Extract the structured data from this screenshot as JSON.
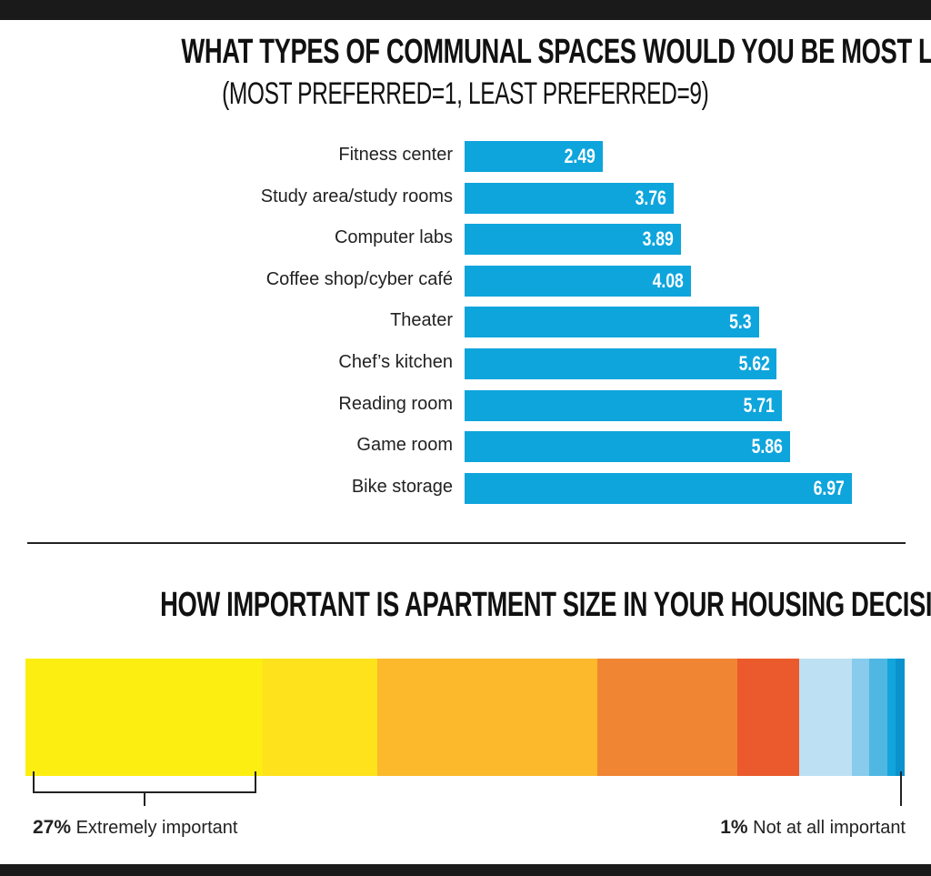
{
  "chart_data": [
    {
      "type": "bar",
      "orientation": "horizontal",
      "title": "WHAT TYPES OF COMMUNAL SPACES WOULD YOU BE MOST LIKELY TO USE?",
      "subtitle": "(MOST PREFERRED=1, LEAST PREFERRED=9)",
      "categories": [
        "Fitness center",
        "Study area/study rooms",
        "Computer labs",
        "Coffee shop/cyber café",
        "Theater",
        "Chef’s kitchen",
        "Reading room",
        "Game room",
        "Bike storage"
      ],
      "values": [
        2.49,
        3.76,
        3.89,
        4.08,
        5.3,
        5.62,
        5.71,
        5.86,
        6.97
      ],
      "value_labels": [
        "2.49",
        "3.76",
        "3.89",
        "4.08",
        "5.3",
        "5.62",
        "5.71",
        "5.86",
        "6.97"
      ],
      "xlim": [
        0,
        7
      ],
      "color": "#0ea5dc"
    },
    {
      "type": "bar",
      "orientation": "stacked-horizontal",
      "title": "HOW IMPORTANT IS APARTMENT SIZE IN YOUR HOUSING DECISION?",
      "values": [
        27,
        13,
        25,
        16,
        7,
        6,
        2,
        2,
        1,
        1
      ],
      "colors": [
        "#fcee10",
        "#fde21c",
        "#fbb92b",
        "#f08533",
        "#eb5a2c",
        "#bde0f2",
        "#88cbec",
        "#4fb7e2",
        "#12a5dc",
        "#0a92cc"
      ],
      "annotations": {
        "left": {
          "value": "27%",
          "label": "Extremely important"
        },
        "right": {
          "value": "1%",
          "label": "Not at all important"
        }
      }
    }
  ]
}
